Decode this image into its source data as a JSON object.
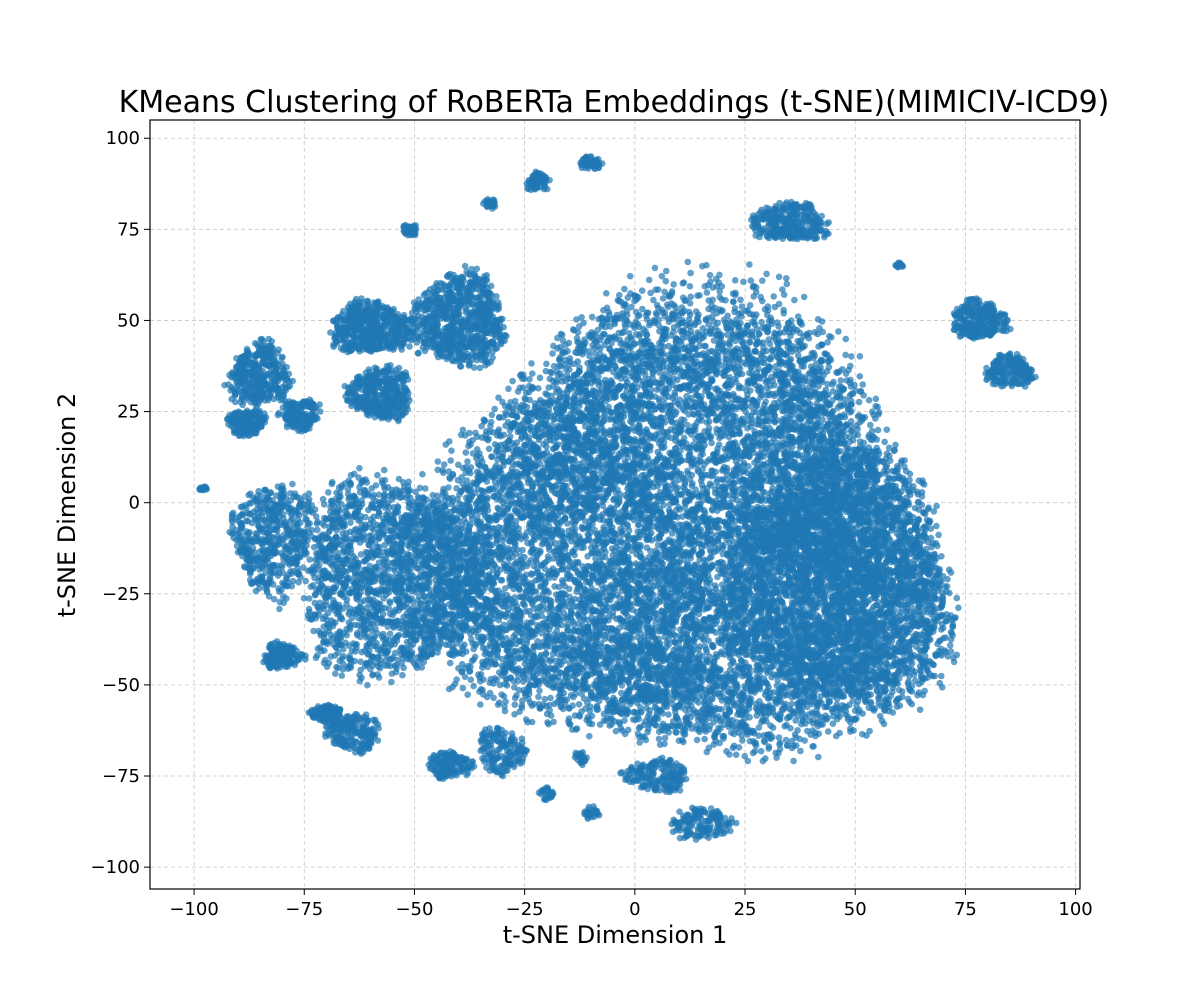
{
  "chart_data": {
    "type": "scatter",
    "title": "KMeans Clustering of RoBERTa Embeddings (t-SNE)(MIMICIV-ICD9)",
    "xlabel": "t-SNE Dimension 1",
    "ylabel": "t-SNE Dimension 2",
    "xlim": [
      -110,
      101
    ],
    "ylim": [
      -106,
      105
    ],
    "xticks": [
      -100,
      -75,
      -50,
      -25,
      0,
      25,
      50,
      75,
      100
    ],
    "xtick_labels": [
      "−100",
      "−75",
      "−50",
      "−25",
      "0",
      "25",
      "50",
      "75",
      "100"
    ],
    "yticks": [
      -100,
      -75,
      -50,
      -25,
      0,
      25,
      50,
      75,
      100
    ],
    "ytick_labels": [
      "−100",
      "−75",
      "−50",
      "−25",
      "0",
      "25",
      "50",
      "75",
      "100"
    ],
    "grid": true,
    "point_color": "#1f77b4",
    "point_opacity": 0.7,
    "approximate": true,
    "clusters": [
      {
        "center": [
          10,
          -8
        ],
        "spread": [
          62,
          68
        ],
        "share": 0.46
      },
      {
        "center": [
          48,
          -22
        ],
        "spread": [
          28,
          38
        ],
        "share": 0.1
      },
      {
        "center": [
          -55,
          -20
        ],
        "spread": [
          24,
          30
        ],
        "share": 0.07
      },
      {
        "center": [
          -40,
          50
        ],
        "spread": [
          12,
          14
        ],
        "share": 0.03
      },
      {
        "center": [
          -60,
          48
        ],
        "spread": [
          10,
          8
        ],
        "share": 0.02
      },
      {
        "center": [
          -58,
          30
        ],
        "spread": [
          8,
          8
        ],
        "share": 0.015
      },
      {
        "center": [
          -85,
          35
        ],
        "spread": [
          8,
          10
        ],
        "share": 0.015
      },
      {
        "center": [
          -88,
          22
        ],
        "spread": [
          5,
          4
        ],
        "share": 0.006
      },
      {
        "center": [
          -76,
          24
        ],
        "spread": [
          5,
          5
        ],
        "share": 0.006
      },
      {
        "center": [
          -82,
          -10
        ],
        "spread": [
          10,
          18
        ],
        "share": 0.02
      },
      {
        "center": [
          -80,
          -42
        ],
        "spread": [
          5,
          4
        ],
        "share": 0.006
      },
      {
        "center": [
          35,
          77
        ],
        "spread": [
          10,
          6
        ],
        "share": 0.012
      },
      {
        "center": [
          78,
          50
        ],
        "spread": [
          7,
          6
        ],
        "share": 0.01
      },
      {
        "center": [
          85,
          36
        ],
        "spread": [
          6,
          5
        ],
        "share": 0.008
      },
      {
        "center": [
          -64,
          -63
        ],
        "spread": [
          7,
          6
        ],
        "share": 0.008
      },
      {
        "center": [
          -70,
          -58
        ],
        "spread": [
          4,
          3
        ],
        "share": 0.004
      },
      {
        "center": [
          -42,
          -72
        ],
        "spread": [
          6,
          4
        ],
        "share": 0.006
      },
      {
        "center": [
          -30,
          -68
        ],
        "spread": [
          6,
          7
        ],
        "share": 0.006
      },
      {
        "center": [
          5,
          -75
        ],
        "spread": [
          8,
          5
        ],
        "share": 0.007
      },
      {
        "center": [
          15,
          -88
        ],
        "spread": [
          8,
          5
        ],
        "share": 0.006
      },
      {
        "center": [
          -22,
          88
        ],
        "spread": [
          3,
          3
        ],
        "share": 0.003
      },
      {
        "center": [
          -10,
          93
        ],
        "spread": [
          3,
          2
        ],
        "share": 0.002
      },
      {
        "center": [
          -51,
          75
        ],
        "spread": [
          2,
          2
        ],
        "share": 0.0015
      },
      {
        "center": [
          -33,
          82
        ],
        "spread": [
          2,
          1.5
        ],
        "share": 0.001
      },
      {
        "center": [
          -98,
          4
        ],
        "spread": [
          1,
          1
        ],
        "share": 0.0005
      },
      {
        "center": [
          -10,
          -85
        ],
        "spread": [
          2,
          2
        ],
        "share": 0.001
      },
      {
        "center": [
          -20,
          -80
        ],
        "spread": [
          2,
          2
        ],
        "share": 0.001
      },
      {
        "center": [
          -12,
          -70
        ],
        "spread": [
          2,
          2
        ],
        "share": 0.001
      },
      {
        "center": [
          60,
          65
        ],
        "spread": [
          1,
          1
        ],
        "share": 0.0005
      }
    ]
  }
}
